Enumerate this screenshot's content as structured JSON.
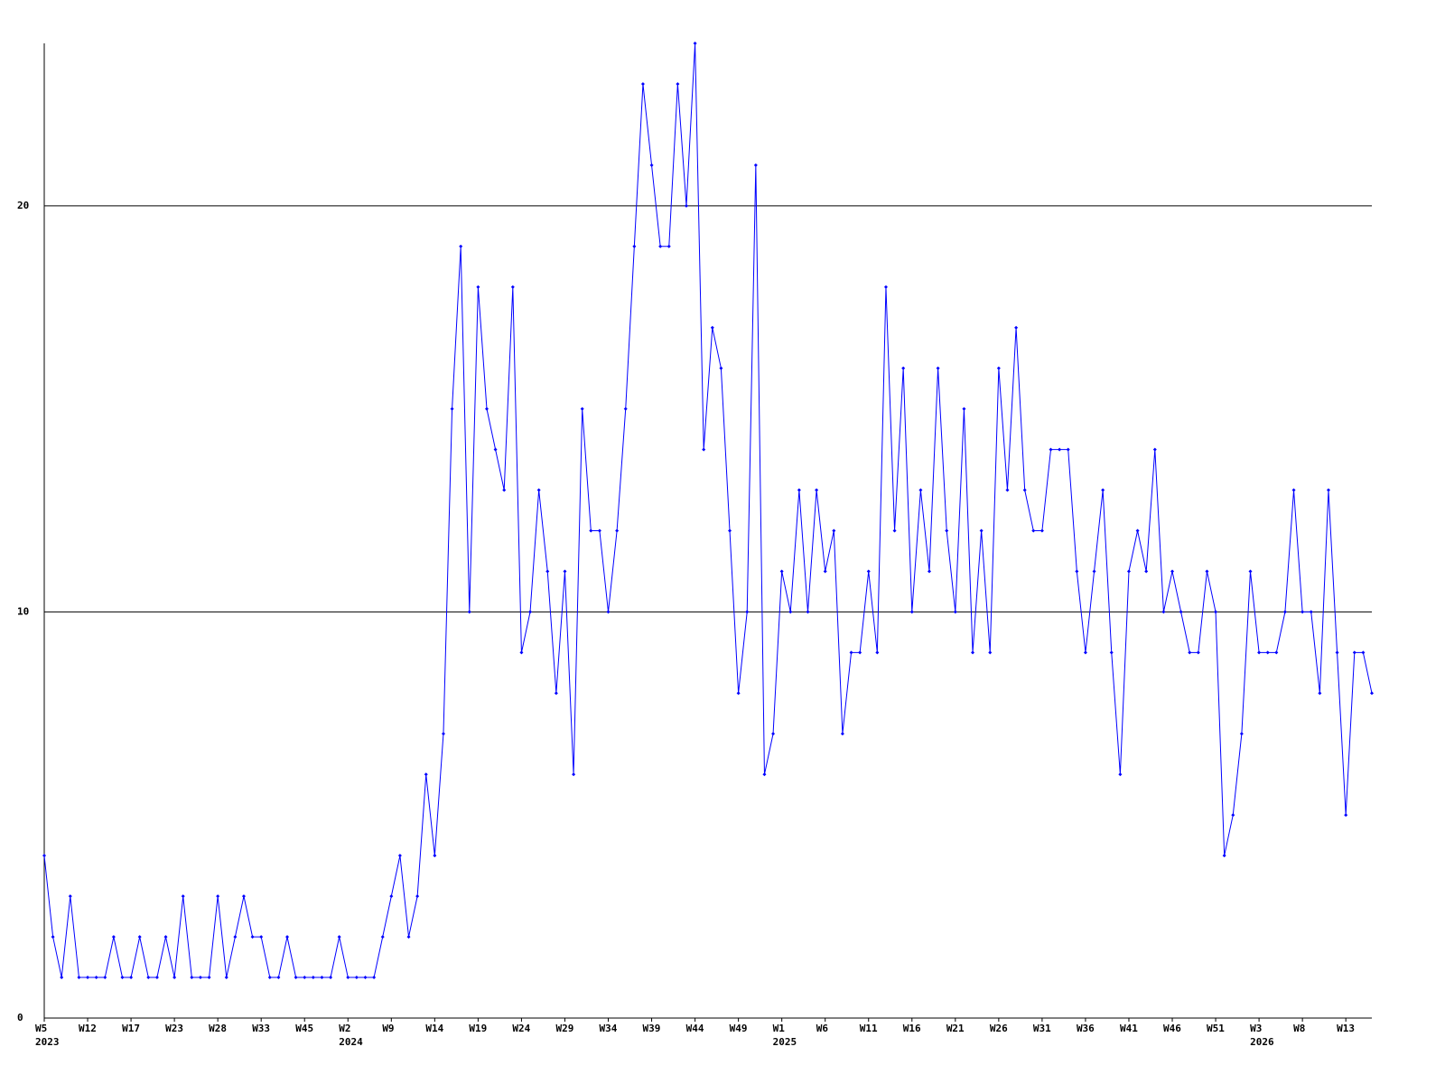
{
  "chart_data": {
    "type": "line",
    "categories": [
      "W5",
      null,
      null,
      null,
      null,
      "W12",
      null,
      null,
      null,
      null,
      "W17",
      null,
      null,
      null,
      null,
      "W23",
      null,
      null,
      null,
      null,
      "W28",
      null,
      null,
      null,
      null,
      "W33",
      null,
      null,
      null,
      null,
      "W45",
      null,
      null,
      null,
      null,
      "W2",
      null,
      null,
      null,
      null,
      "W9",
      null,
      null,
      null,
      null,
      "W14",
      null,
      null,
      null,
      null,
      "W19",
      null,
      null,
      null,
      null,
      "W24",
      null,
      null,
      null,
      null,
      "W29",
      null,
      null,
      null,
      null,
      "W34",
      null,
      null,
      null,
      null,
      "W39",
      null,
      null,
      null,
      null,
      "W44",
      null,
      null,
      null,
      null,
      "W49",
      null,
      null,
      null,
      null,
      "W1",
      null,
      null,
      null,
      null,
      "W6",
      null,
      null,
      null,
      null,
      "W11",
      null,
      null,
      null,
      null,
      "W16",
      null,
      null,
      null,
      null,
      "W21",
      null,
      null,
      null,
      null,
      "W26",
      null,
      null,
      null,
      null,
      "W31",
      null,
      null,
      null,
      null,
      "W36",
      null,
      null,
      null,
      null,
      "W41",
      null,
      null,
      null,
      null,
      "W46",
      null,
      null,
      null,
      null,
      "W51",
      null,
      null,
      null,
      null,
      "W3",
      null,
      null,
      null,
      null,
      "W8",
      null,
      null,
      null,
      null,
      "W13",
      null,
      null,
      null
    ],
    "category_years": [
      "2023",
      null,
      null,
      null,
      null,
      null,
      null,
      null,
      null,
      null,
      null,
      null,
      null,
      null,
      null,
      null,
      null,
      null,
      null,
      null,
      null,
      null,
      null,
      null,
      null,
      null,
      null,
      null,
      null,
      null,
      null,
      null,
      null,
      null,
      null,
      "2024",
      null,
      null,
      null,
      null,
      null,
      null,
      null,
      null,
      null,
      null,
      null,
      null,
      null,
      null,
      null,
      null,
      null,
      null,
      null,
      null,
      null,
      null,
      null,
      null,
      null,
      null,
      null,
      null,
      null,
      null,
      null,
      null,
      null,
      null,
      null,
      null,
      null,
      null,
      null,
      null,
      null,
      null,
      null,
      null,
      null,
      null,
      null,
      null,
      null,
      "2025",
      null,
      null,
      null,
      null,
      null,
      null,
      null,
      null,
      null,
      null,
      null,
      null,
      null,
      null,
      null,
      null,
      null,
      null,
      null,
      null,
      null,
      null,
      null,
      null,
      null,
      null,
      null,
      null,
      null,
      null,
      null,
      null,
      null,
      null,
      null,
      null,
      null,
      null,
      null,
      null,
      null,
      null,
      null,
      null,
      null,
      null,
      null,
      null,
      null,
      null,
      null,
      null,
      null,
      null,
      "2026",
      null,
      null,
      null,
      null,
      null,
      null,
      null,
      null,
      null,
      null,
      null,
      null,
      null
    ],
    "series": [
      {
        "color": "#0000ff",
        "values": [
          4,
          2,
          1,
          3,
          1,
          1,
          1,
          1,
          2,
          1,
          1,
          2,
          1,
          1,
          2,
          1,
          3,
          1,
          1,
          1,
          3,
          1,
          2,
          3,
          2,
          2,
          1,
          1,
          2,
          1,
          1,
          1,
          1,
          1,
          2,
          1,
          1,
          1,
          1,
          2,
          3,
          4,
          2,
          3,
          6,
          4,
          7,
          15,
          19,
          10,
          18,
          15,
          14,
          13,
          18,
          9,
          10,
          13,
          11,
          8,
          11,
          6,
          15,
          12,
          12,
          10,
          12,
          15,
          19,
          23,
          21,
          19,
          19,
          23,
          20,
          24,
          14,
          17,
          16,
          12,
          8,
          10,
          21,
          6,
          7,
          11,
          10,
          13,
          10,
          13,
          11,
          12,
          7,
          9,
          9,
          11,
          9,
          18,
          12,
          16,
          10,
          13,
          11,
          16,
          12,
          10,
          15,
          9,
          12,
          9,
          16,
          13,
          17,
          13,
          12,
          12,
          14,
          14,
          14,
          11,
          9,
          11,
          13,
          9,
          6,
          11,
          12,
          11,
          14,
          10,
          11,
          10,
          9,
          9,
          11,
          10,
          4,
          5,
          7,
          11,
          9,
          9,
          9,
          10,
          13,
          10,
          10,
          8,
          13,
          9,
          5,
          9,
          9,
          8
        ]
      }
    ],
    "ylim": [
      0,
      24
    ],
    "yticks": [
      0,
      10,
      20
    ],
    "grid": true
  }
}
